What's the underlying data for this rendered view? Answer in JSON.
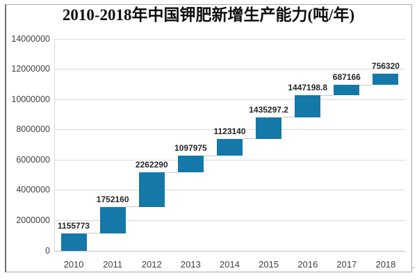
{
  "paragraph_mark": "←",
  "colors": {
    "bar": "#1478a8",
    "gridline": "#d9d9d9",
    "axis_line": "#bfbfbf",
    "connector": "#c9c9c9",
    "value_label_text": "#262626",
    "tick_text": "#3f3f3f",
    "frame_border": "#a8a8a8",
    "background": "#ffffff"
  },
  "chart_data": {
    "type": "bar",
    "subtype": "waterfall",
    "title": "2010-2018年中国钾肥新增生产能力(吨/年)",
    "categories": [
      "2010",
      "2011",
      "2012",
      "2013",
      "2014",
      "2015",
      "2016",
      "2017",
      "2018"
    ],
    "values": [
      1155773,
      1752160,
      2262290,
      1097975,
      1123140,
      1435297.2,
      1447198.8,
      687166,
      756320
    ],
    "value_labels": [
      "1155773",
      "1752160",
      "2262290",
      "1097975",
      "1123140",
      "1435297.2",
      "1447198.8",
      "687166",
      "756320"
    ],
    "cumulative": [
      1155773,
      2907933,
      5170223,
      6268198,
      7391338,
      8826635.2,
      10273834,
      10961000,
      11717320
    ],
    "xlabel": "",
    "ylabel": "",
    "ylim": [
      0,
      14000000
    ],
    "ytick_values": [
      0,
      2000000,
      4000000,
      6000000,
      8000000,
      10000000,
      12000000,
      14000000
    ],
    "ytick_labels": [
      "0",
      "2000000",
      "4000000",
      "6000000",
      "8000000",
      "10000000",
      "12000000",
      "14000000"
    ],
    "grid": true,
    "legend": false
  }
}
